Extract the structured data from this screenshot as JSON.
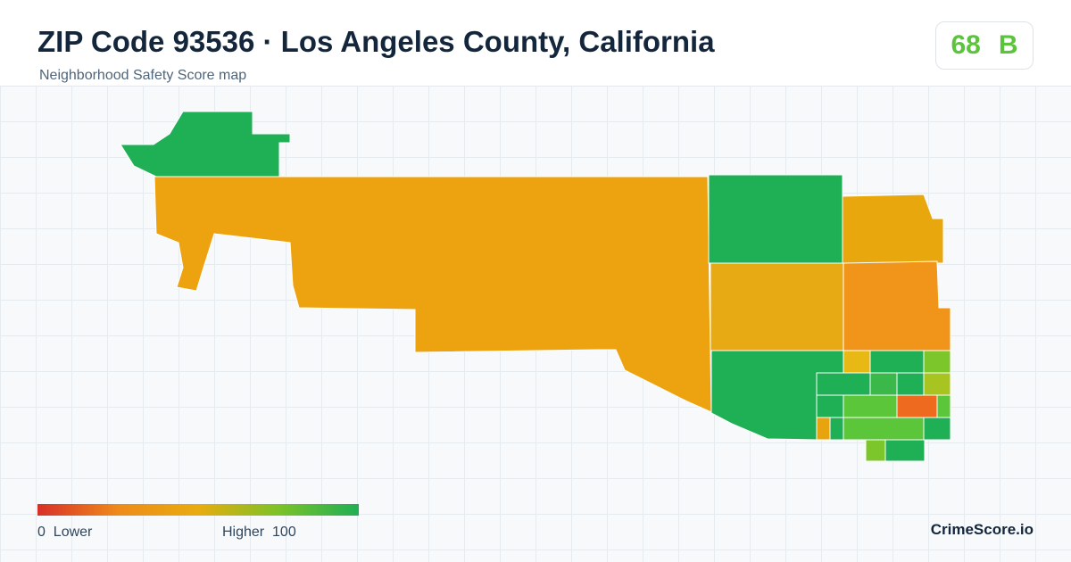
{
  "header": {
    "title": "ZIP Code 93536 · Los Angeles County, California",
    "subtitle": "Neighborhood Safety Score map"
  },
  "score": {
    "value": 68,
    "grade": "B"
  },
  "legend": {
    "min": 0,
    "min_label": "Lower",
    "max_label": "Higher",
    "max": 100
  },
  "brand": "CrimeScore.io"
}
